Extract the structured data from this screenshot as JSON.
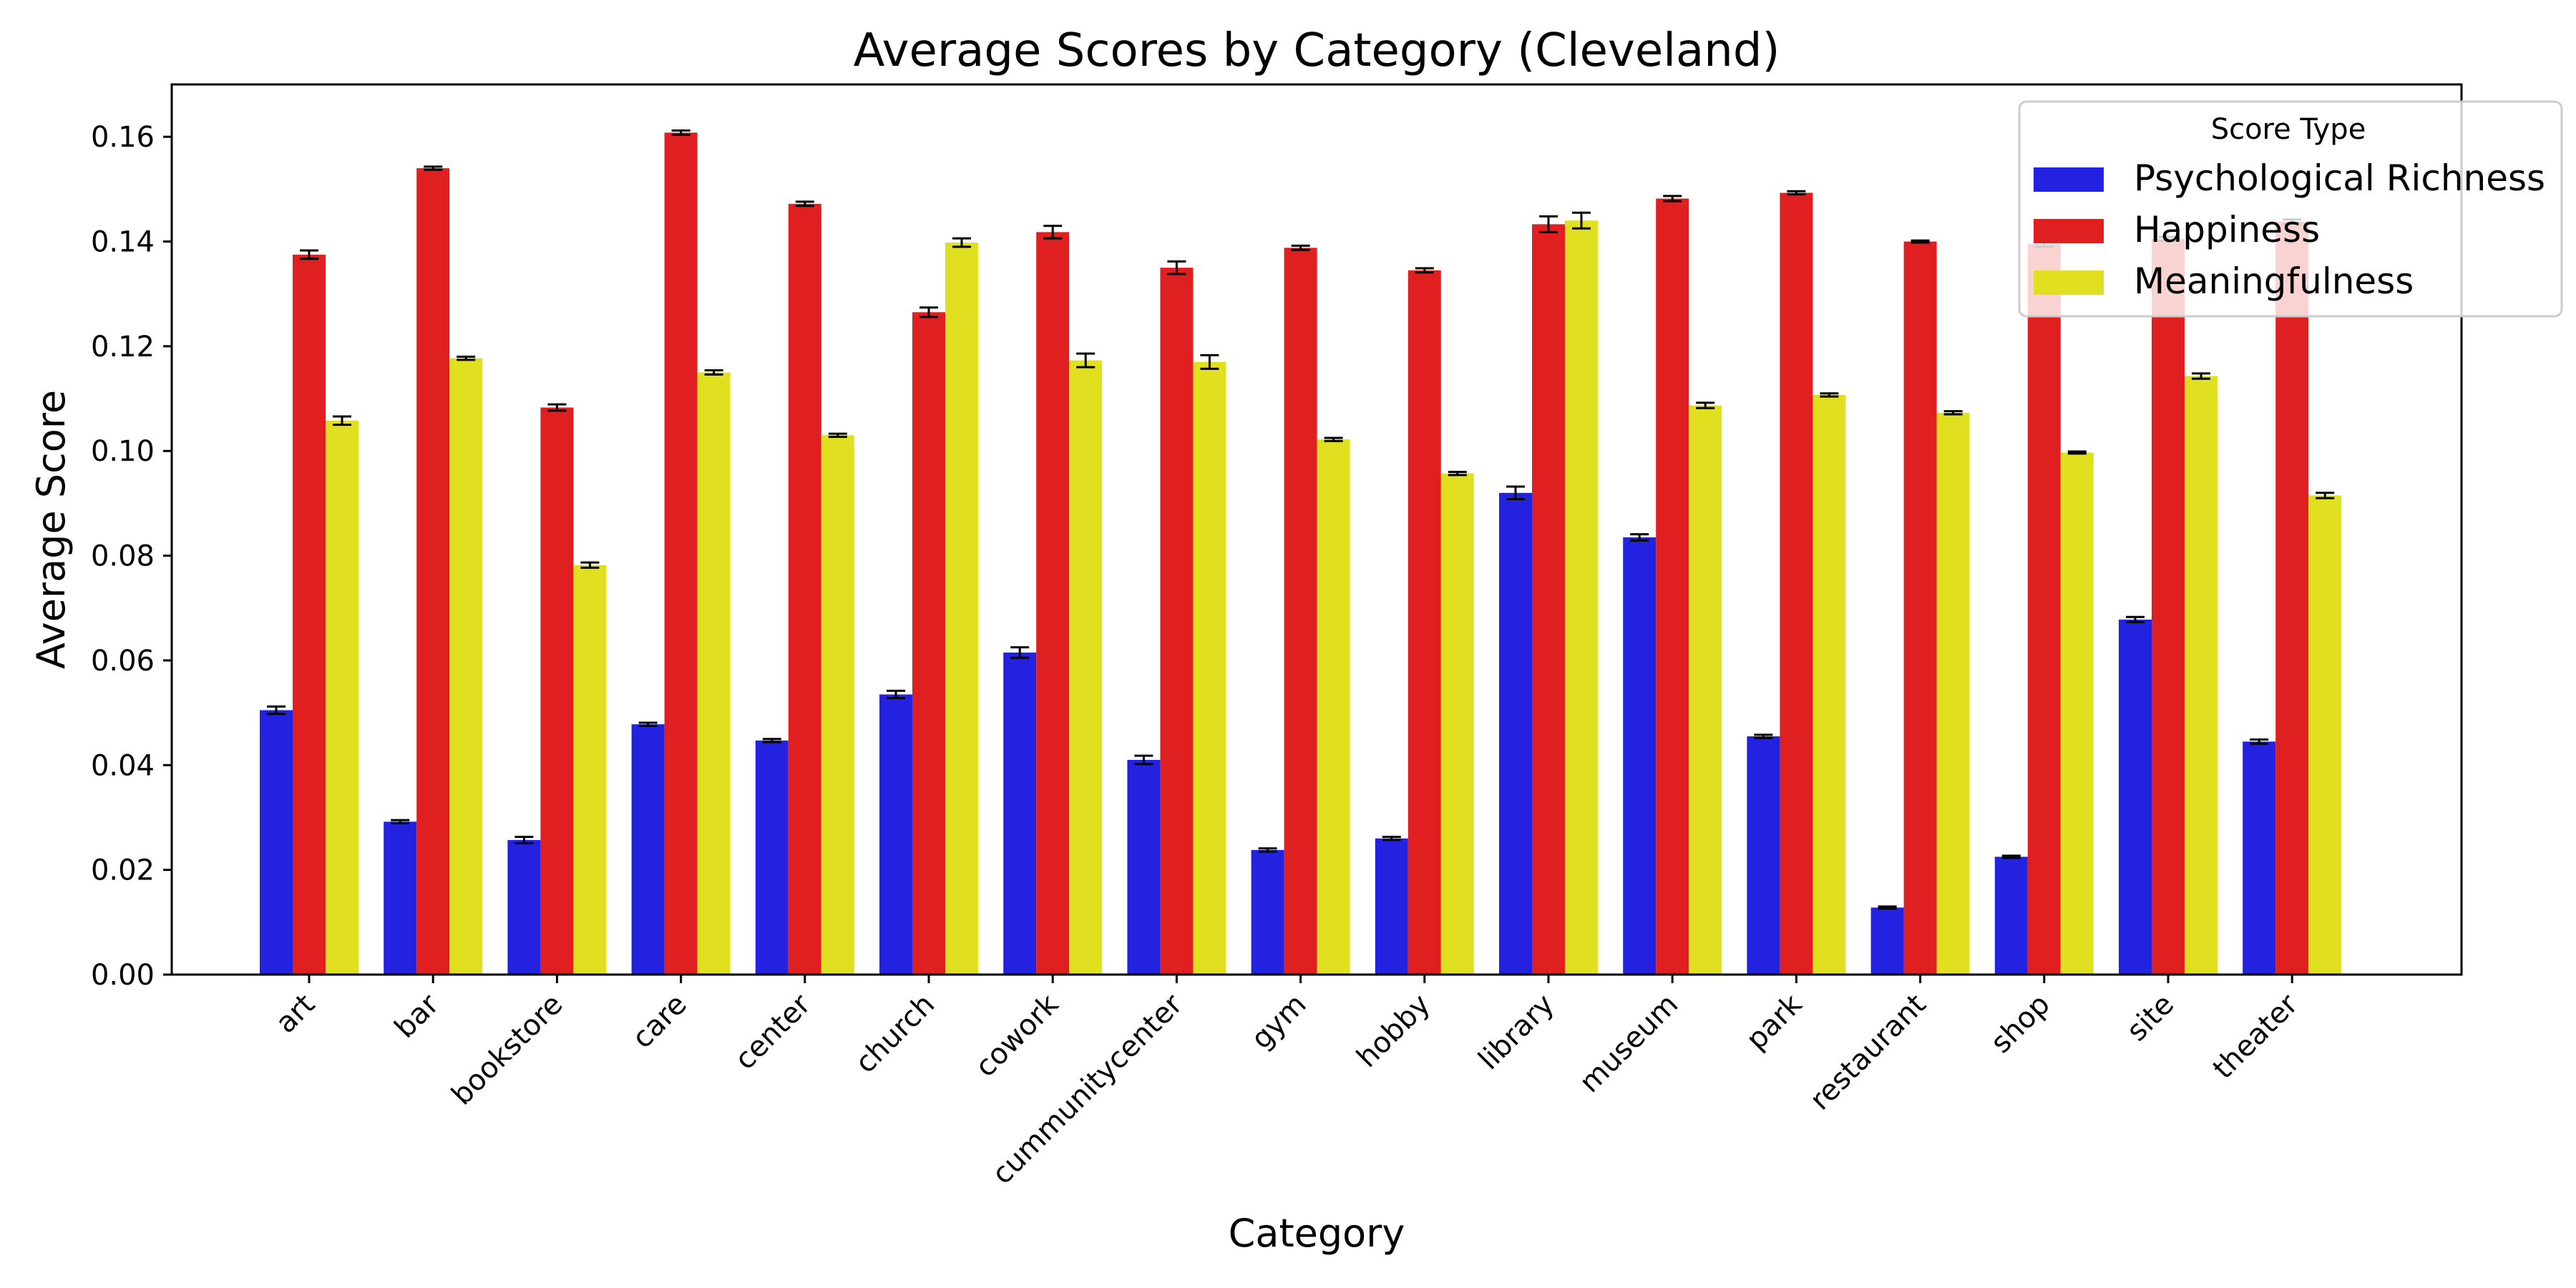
{
  "chart_data": {
    "type": "bar",
    "title": "Average Scores by Category (Cleveland)",
    "xlabel": "Category",
    "ylabel": "Average Score",
    "ylim": [
      0,
      0.17
    ],
    "yticks": [
      "0.00",
      "0.02",
      "0.04",
      "0.06",
      "0.08",
      "0.10",
      "0.12",
      "0.14",
      "0.16"
    ],
    "grid": false,
    "error_bars": true,
    "categories": [
      "art",
      "bar",
      "bookstore",
      "care",
      "center",
      "church",
      "cowork",
      "cummunitycenter",
      "gym",
      "hobby",
      "library",
      "museum",
      "park",
      "restaurant",
      "shop",
      "site",
      "theater"
    ],
    "legend": {
      "title": "Score Type",
      "position": "top-right"
    },
    "series": [
      {
        "name": "Psychological Richness",
        "color": "#2222e0",
        "values": [
          0.0505,
          0.0292,
          0.0257,
          0.0478,
          0.0447,
          0.0535,
          0.0615,
          0.041,
          0.0238,
          0.026,
          0.092,
          0.0835,
          0.0455,
          0.0128,
          0.0225,
          0.0678,
          0.0445
        ],
        "errors": [
          0.0007,
          0.0003,
          0.0006,
          0.0003,
          0.0003,
          0.0007,
          0.001,
          0.0008,
          0.0003,
          0.0003,
          0.0012,
          0.0006,
          0.0003,
          0.0002,
          0.0002,
          0.0005,
          0.0004
        ]
      },
      {
        "name": "Happiness",
        "color": "#e02020",
        "values": [
          0.1375,
          0.154,
          0.1083,
          0.1608,
          0.1472,
          0.1265,
          0.1418,
          0.135,
          0.1388,
          0.1345,
          0.1433,
          0.1482,
          0.1493,
          0.14,
          0.1395,
          0.1405,
          0.1438
        ],
        "errors": [
          0.0008,
          0.0003,
          0.0006,
          0.0004,
          0.0004,
          0.0009,
          0.0012,
          0.0012,
          0.0004,
          0.0004,
          0.0015,
          0.0005,
          0.0003,
          0.0002,
          0.0005,
          0.0004,
          0.0004
        ]
      },
      {
        "name": "Meaningfulness",
        "color": "#e0e020",
        "values": [
          0.1058,
          0.1177,
          0.0782,
          0.115,
          0.103,
          0.1398,
          0.1173,
          0.117,
          0.1022,
          0.0957,
          0.144,
          0.1087,
          0.1107,
          0.1073,
          0.0997,
          0.1143,
          0.0915
        ],
        "errors": [
          0.0008,
          0.0003,
          0.0005,
          0.0004,
          0.0003,
          0.0008,
          0.0013,
          0.0013,
          0.0003,
          0.0003,
          0.0015,
          0.0005,
          0.0003,
          0.0003,
          0.0002,
          0.0005,
          0.0005
        ]
      }
    ]
  }
}
